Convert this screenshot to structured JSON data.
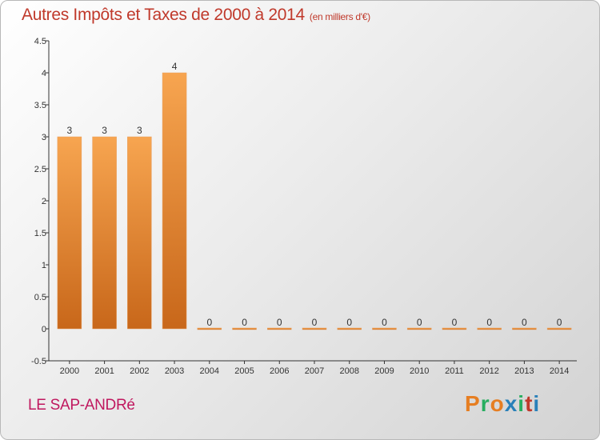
{
  "header": {
    "title": "Autres Impôts et Taxes de 2000 à 2014",
    "subtitle": "(en milliers d'€)"
  },
  "footer": {
    "city": "LE SAP-ANDRé",
    "logo_letters": [
      "P",
      "r",
      "o",
      "x",
      "i",
      "t",
      "i"
    ],
    "logo_colors": [
      "#e67e22",
      "#27ae60",
      "#e67e22",
      "#2980b9",
      "#27ae60",
      "#c0392b",
      "#2980b9"
    ]
  },
  "chart_data": {
    "type": "bar",
    "title": "Autres Impôts et Taxes de 2000 à 2014",
    "subtitle": "(en milliers d'€)",
    "xlabel": "",
    "ylabel": "",
    "categories": [
      "2000",
      "2001",
      "2002",
      "2003",
      "2004",
      "2005",
      "2006",
      "2007",
      "2008",
      "2009",
      "2010",
      "2011",
      "2012",
      "2013",
      "2014"
    ],
    "values": [
      3,
      3,
      3,
      4,
      0,
      0,
      0,
      0,
      0,
      0,
      0,
      0,
      0,
      0,
      0
    ],
    "data_labels": [
      "3",
      "3",
      "3",
      "4",
      "0",
      "0",
      "0",
      "0",
      "0",
      "0",
      "0",
      "0",
      "0",
      "0",
      "0"
    ],
    "ylim": [
      -0.5,
      4.5
    ],
    "yticks": [
      -0.5,
      0,
      0.5,
      1,
      1.5,
      2,
      2.5,
      3,
      3.5,
      4,
      4.5
    ],
    "ytick_labels": [
      "-0.5",
      "0",
      "0.5",
      "1",
      "1.5",
      "2",
      "2.5",
      "3",
      "3.5",
      "4",
      "4.5"
    ],
    "bar_color_light": "#f7a550",
    "bar_color_dark": "#c8671a",
    "grid": false
  }
}
